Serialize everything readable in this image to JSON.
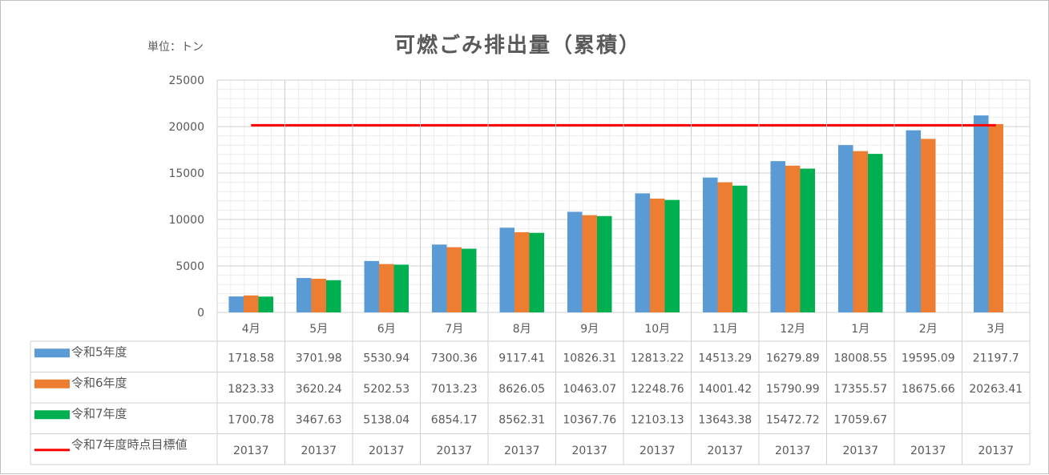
{
  "chart_data": {
    "type": "bar",
    "title": "可燃ごみ排出量（累積）",
    "unit_label": "単位：トン",
    "categories": [
      "4月",
      "5月",
      "6月",
      "7月",
      "8月",
      "9月",
      "10月",
      "11月",
      "12月",
      "1月",
      "2月",
      "3月"
    ],
    "ylim": [
      0,
      25000
    ],
    "yticks": [
      "0",
      "5000",
      "10000",
      "15000",
      "20000",
      "25000"
    ],
    "grid": true,
    "legend": "data-table",
    "series": [
      {
        "name": "令和5年度",
        "color": "#5b9bd5",
        "values": [
          1718.58,
          3701.98,
          5530.94,
          7300.36,
          9117.41,
          10826.31,
          12813.22,
          14513.29,
          16279.89,
          18008.55,
          19595.09,
          21197.7
        ],
        "labels": [
          "1718.58",
          "3701.98",
          "5530.94",
          "7300.36",
          "9117.41",
          "10826.31",
          "12813.22",
          "14513.29",
          "16279.89",
          "18008.55",
          "19595.09",
          "21197.7"
        ]
      },
      {
        "name": "令和6年度",
        "color": "#ed7d31",
        "values": [
          1823.33,
          3620.24,
          5202.53,
          7013.23,
          8626.05,
          10463.07,
          12248.76,
          14001.42,
          15790.99,
          17355.57,
          18675.66,
          20263.41
        ],
        "labels": [
          "1823.33",
          "3620.24",
          "5202.53",
          "7013.23",
          "8626.05",
          "10463.07",
          "12248.76",
          "14001.42",
          "15790.99",
          "17355.57",
          "18675.66",
          "20263.41"
        ]
      },
      {
        "name": "令和7年度",
        "color": "#00b050",
        "values": [
          1700.78,
          3467.63,
          5138.04,
          6854.17,
          8562.31,
          10367.76,
          12103.13,
          13643.38,
          15472.72,
          17059.67,
          null,
          null
        ],
        "labels": [
          "1700.78",
          "3467.63",
          "5138.04",
          "6854.17",
          "8562.31",
          "10367.76",
          "12103.13",
          "13643.38",
          "15472.72",
          "17059.67",
          "",
          ""
        ]
      }
    ],
    "target_line": {
      "name": "令和7年度時点目標値",
      "color": "#ff0000",
      "values": [
        20137,
        20137,
        20137,
        20137,
        20137,
        20137,
        20137,
        20137,
        20137,
        20137,
        20137,
        20137
      ],
      "labels": [
        "20137",
        "20137",
        "20137",
        "20137",
        "20137",
        "20137",
        "20137",
        "20137",
        "20137",
        "20137",
        "20137",
        "20137"
      ]
    }
  }
}
